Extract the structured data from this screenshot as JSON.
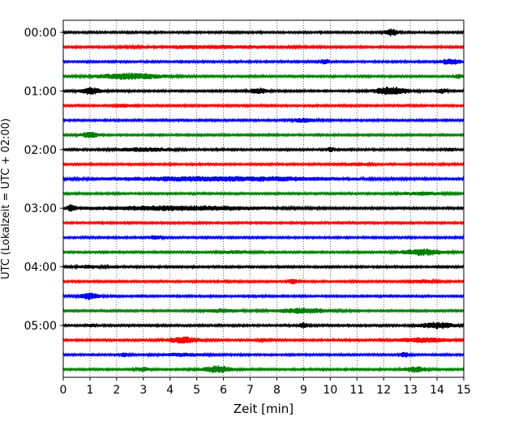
{
  "chart_data": {
    "type": "line",
    "title": "",
    "xlabel": "Zeit  [min]",
    "ylabel": "UTC (Lokalzeit = UTC + 02:00)",
    "xlim": [
      0,
      15
    ],
    "x_ticks": [
      "0",
      "1",
      "2",
      "3",
      "4",
      "5",
      "6",
      "7",
      "8",
      "9",
      "10",
      "11",
      "12",
      "13",
      "14",
      "15"
    ],
    "y_ticks": [
      "00:00",
      "01:00",
      "02:00",
      "03:00",
      "04:00",
      "05:00"
    ],
    "y_tick_rows": [
      0,
      4,
      8,
      12,
      16,
      20
    ],
    "grid": "vertical-dotted",
    "trace_interval_min": 15,
    "color_cycle": [
      "#000000",
      "#ff0000",
      "#0000ff",
      "#008000"
    ],
    "traces": [
      {
        "start": "00:00",
        "color": "#000000",
        "bursts": [
          [
            12.3,
            0.6,
            4
          ]
        ]
      },
      {
        "start": "00:15",
        "color": "#ff0000",
        "bursts": [
          [
            5.5,
            6.5,
            1.5
          ]
        ]
      },
      {
        "start": "00:30",
        "color": "#0000ff",
        "bursts": [
          [
            9.8,
            0.5,
            2.5
          ],
          [
            14.5,
            1.0,
            3
          ]
        ]
      },
      {
        "start": "00:45",
        "color": "#008000",
        "bursts": [
          [
            2.5,
            3.0,
            3.5
          ],
          [
            14.8,
            0.4,
            2
          ]
        ]
      },
      {
        "start": "01:00",
        "color": "#000000",
        "bursts": [
          [
            1.0,
            0.9,
            4
          ],
          [
            7.3,
            0.8,
            3.5
          ],
          [
            12.3,
            1.6,
            4.5
          ],
          [
            14.2,
            0.4,
            2.5
          ]
        ]
      },
      {
        "start": "01:15",
        "color": "#ff0000",
        "bursts": [
          [
            2.3,
            0.8,
            1.5
          ]
        ]
      },
      {
        "start": "01:30",
        "color": "#0000ff",
        "bursts": [
          [
            9.0,
            1.2,
            2
          ]
        ]
      },
      {
        "start": "01:45",
        "color": "#008000",
        "bursts": [
          [
            1.0,
            0.8,
            3.5
          ]
        ]
      },
      {
        "start": "02:00",
        "color": "#000000",
        "bursts": [
          [
            3.0,
            2.5,
            2
          ],
          [
            10.0,
            0.3,
            2.5
          ],
          [
            14.5,
            0.3,
            2
          ]
        ]
      },
      {
        "start": "02:15",
        "color": "#ff0000",
        "bursts": [
          [
            11.0,
            1.0,
            1.5
          ]
        ]
      },
      {
        "start": "02:30",
        "color": "#0000ff",
        "bursts": [
          [
            6.0,
            11.0,
            2.5
          ]
        ]
      },
      {
        "start": "02:45",
        "color": "#008000",
        "bursts": [
          [
            13.5,
            2.0,
            1.5
          ]
        ]
      },
      {
        "start": "03:00",
        "color": "#000000",
        "bursts": [
          [
            4.3,
            8.3,
            2.5
          ],
          [
            0.3,
            0.4,
            3
          ]
        ]
      },
      {
        "start": "03:15",
        "color": "#ff0000",
        "bursts": []
      },
      {
        "start": "03:30",
        "color": "#0000ff",
        "bursts": [
          [
            3.4,
            0.6,
            2
          ]
        ]
      },
      {
        "start": "03:45",
        "color": "#008000",
        "bursts": [
          [
            13.5,
            1.8,
            3.5
          ],
          [
            6.5,
            1.2,
            1.5
          ]
        ]
      },
      {
        "start": "04:00",
        "color": "#000000",
        "bursts": [
          [
            1.0,
            1.2,
            1.5
          ]
        ]
      },
      {
        "start": "04:15",
        "color": "#ff0000",
        "bursts": [
          [
            8.6,
            0.4,
            3
          ],
          [
            13.5,
            1.2,
            1.5
          ]
        ]
      },
      {
        "start": "04:30",
        "color": "#0000ff",
        "bursts": [
          [
            1.0,
            0.8,
            4
          ]
        ]
      },
      {
        "start": "04:45",
        "color": "#008000",
        "bursts": [
          [
            9.0,
            2.4,
            3
          ],
          [
            6.0,
            1.5,
            2
          ]
        ]
      },
      {
        "start": "05:00",
        "color": "#000000",
        "bursts": [
          [
            9.0,
            0.4,
            3
          ],
          [
            14.0,
            1.6,
            3.5
          ],
          [
            1.0,
            0.3,
            1.5
          ]
        ]
      },
      {
        "start": "05:15",
        "color": "#ff0000",
        "bursts": [
          [
            4.5,
            1.5,
            3.5
          ],
          [
            7.5,
            0.4,
            2.5
          ],
          [
            13.5,
            2.5,
            2.5
          ]
        ]
      },
      {
        "start": "05:30",
        "color": "#0000ff",
        "bursts": [
          [
            12.8,
            0.4,
            3
          ],
          [
            4.5,
            2.0,
            1.5
          ],
          [
            2.3,
            0.4,
            2
          ]
        ]
      },
      {
        "start": "05:45",
        "color": "#008000",
        "bursts": [
          [
            5.8,
            1.3,
            4
          ],
          [
            13.2,
            1.0,
            3
          ],
          [
            3.0,
            0.6,
            2
          ]
        ]
      }
    ]
  }
}
